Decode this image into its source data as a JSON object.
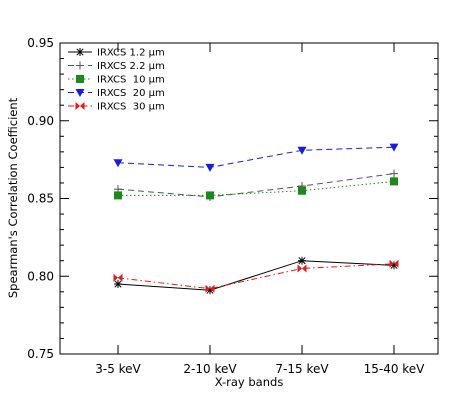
{
  "chart_data": {
    "type": "line",
    "xlabel": "X-ray bands",
    "ylabel": "Spearman's Correlation Coefficient",
    "categories": [
      "3-5 keV",
      "2-10 keV",
      "7-15 keV",
      "15-40 keV"
    ],
    "ylim": [
      0.75,
      0.95
    ],
    "yticks": [
      "0.75",
      "0.80",
      "0.85",
      "0.90",
      "0.95"
    ],
    "legend_position": "top-left",
    "grid": false,
    "series": [
      {
        "name": "IRXCS 1.2 μm",
        "values": [
          0.795,
          0.791,
          0.81,
          0.807
        ],
        "color": "#000000",
        "marker": "asterisk",
        "dash": "solid"
      },
      {
        "name": "IRXCS 2.2 μm",
        "values": [
          0.856,
          0.851,
          0.858,
          0.866
        ],
        "color": "#555555",
        "marker": "plus",
        "dash": "dashed"
      },
      {
        "name": "IRXCS  10 μm",
        "values": [
          0.852,
          0.852,
          0.855,
          0.861
        ],
        "color": "#1a8a1a",
        "marker": "square",
        "dash": "dotted"
      },
      {
        "name": "IRXCS  20 μm",
        "values": [
          0.873,
          0.87,
          0.881,
          0.883
        ],
        "color": "#1a1ae6",
        "marker": "triangle-down",
        "dash": "dashed"
      },
      {
        "name": "IRXCS  30 μm",
        "values": [
          0.799,
          0.792,
          0.805,
          0.808
        ],
        "color": "#e61a1a",
        "marker": "bowtie",
        "dash": "dashdot"
      }
    ]
  }
}
